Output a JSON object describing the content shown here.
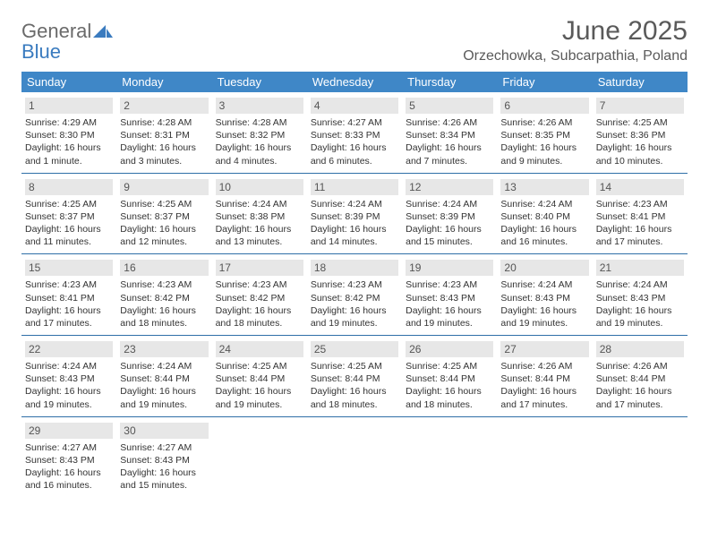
{
  "logo": {
    "general": "General",
    "blue": "Blue"
  },
  "title": "June 2025",
  "location": "Orzechowka, Subcarpathia, Poland",
  "colors": {
    "header_bg": "#3f87c7",
    "header_text": "#ffffff",
    "daynum_bg": "#e7e7e7",
    "week_border": "#2f6fa8",
    "body_text": "#333333",
    "title_text": "#5a5a5a"
  },
  "dow": [
    "Sunday",
    "Monday",
    "Tuesday",
    "Wednesday",
    "Thursday",
    "Friday",
    "Saturday"
  ],
  "weeks": [
    [
      {
        "n": "1",
        "sr": "4:29 AM",
        "ss": "8:30 PM",
        "dl": "16 hours and 1 minute."
      },
      {
        "n": "2",
        "sr": "4:28 AM",
        "ss": "8:31 PM",
        "dl": "16 hours and 3 minutes."
      },
      {
        "n": "3",
        "sr": "4:28 AM",
        "ss": "8:32 PM",
        "dl": "16 hours and 4 minutes."
      },
      {
        "n": "4",
        "sr": "4:27 AM",
        "ss": "8:33 PM",
        "dl": "16 hours and 6 minutes."
      },
      {
        "n": "5",
        "sr": "4:26 AM",
        "ss": "8:34 PM",
        "dl": "16 hours and 7 minutes."
      },
      {
        "n": "6",
        "sr": "4:26 AM",
        "ss": "8:35 PM",
        "dl": "16 hours and 9 minutes."
      },
      {
        "n": "7",
        "sr": "4:25 AM",
        "ss": "8:36 PM",
        "dl": "16 hours and 10 minutes."
      }
    ],
    [
      {
        "n": "8",
        "sr": "4:25 AM",
        "ss": "8:37 PM",
        "dl": "16 hours and 11 minutes."
      },
      {
        "n": "9",
        "sr": "4:25 AM",
        "ss": "8:37 PM",
        "dl": "16 hours and 12 minutes."
      },
      {
        "n": "10",
        "sr": "4:24 AM",
        "ss": "8:38 PM",
        "dl": "16 hours and 13 minutes."
      },
      {
        "n": "11",
        "sr": "4:24 AM",
        "ss": "8:39 PM",
        "dl": "16 hours and 14 minutes."
      },
      {
        "n": "12",
        "sr": "4:24 AM",
        "ss": "8:39 PM",
        "dl": "16 hours and 15 minutes."
      },
      {
        "n": "13",
        "sr": "4:24 AM",
        "ss": "8:40 PM",
        "dl": "16 hours and 16 minutes."
      },
      {
        "n": "14",
        "sr": "4:23 AM",
        "ss": "8:41 PM",
        "dl": "16 hours and 17 minutes."
      }
    ],
    [
      {
        "n": "15",
        "sr": "4:23 AM",
        "ss": "8:41 PM",
        "dl": "16 hours and 17 minutes."
      },
      {
        "n": "16",
        "sr": "4:23 AM",
        "ss": "8:42 PM",
        "dl": "16 hours and 18 minutes."
      },
      {
        "n": "17",
        "sr": "4:23 AM",
        "ss": "8:42 PM",
        "dl": "16 hours and 18 minutes."
      },
      {
        "n": "18",
        "sr": "4:23 AM",
        "ss": "8:42 PM",
        "dl": "16 hours and 19 minutes."
      },
      {
        "n": "19",
        "sr": "4:23 AM",
        "ss": "8:43 PM",
        "dl": "16 hours and 19 minutes."
      },
      {
        "n": "20",
        "sr": "4:24 AM",
        "ss": "8:43 PM",
        "dl": "16 hours and 19 minutes."
      },
      {
        "n": "21",
        "sr": "4:24 AM",
        "ss": "8:43 PM",
        "dl": "16 hours and 19 minutes."
      }
    ],
    [
      {
        "n": "22",
        "sr": "4:24 AM",
        "ss": "8:43 PM",
        "dl": "16 hours and 19 minutes."
      },
      {
        "n": "23",
        "sr": "4:24 AM",
        "ss": "8:44 PM",
        "dl": "16 hours and 19 minutes."
      },
      {
        "n": "24",
        "sr": "4:25 AM",
        "ss": "8:44 PM",
        "dl": "16 hours and 19 minutes."
      },
      {
        "n": "25",
        "sr": "4:25 AM",
        "ss": "8:44 PM",
        "dl": "16 hours and 18 minutes."
      },
      {
        "n": "26",
        "sr": "4:25 AM",
        "ss": "8:44 PM",
        "dl": "16 hours and 18 minutes."
      },
      {
        "n": "27",
        "sr": "4:26 AM",
        "ss": "8:44 PM",
        "dl": "16 hours and 17 minutes."
      },
      {
        "n": "28",
        "sr": "4:26 AM",
        "ss": "8:44 PM",
        "dl": "16 hours and 17 minutes."
      }
    ],
    [
      {
        "n": "29",
        "sr": "4:27 AM",
        "ss": "8:43 PM",
        "dl": "16 hours and 16 minutes."
      },
      {
        "n": "30",
        "sr": "4:27 AM",
        "ss": "8:43 PM",
        "dl": "16 hours and 15 minutes."
      },
      null,
      null,
      null,
      null,
      null
    ]
  ],
  "labels": {
    "sunrise": "Sunrise: ",
    "sunset": "Sunset: ",
    "daylight": "Daylight: "
  }
}
